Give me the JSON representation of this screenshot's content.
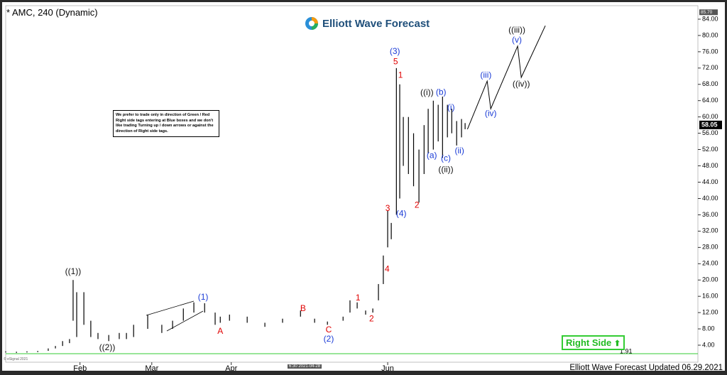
{
  "title": "* AMC, 240 (Dynamic)",
  "logo": "Elliott Wave Forecast",
  "note": "We prefer to trade only in direction of Green / Red Right side tags entering at Blue boxes and we don't like trading Turning up / down arrows or against the direction of Right side tags.",
  "right_side": "Right Side",
  "footer": "Elliott Wave Forecast Updated 06.29.2021",
  "copyright": "© eSignal 2021",
  "cursor_time": "6:30 2021-04-28",
  "chart_data": {
    "type": "ohlc",
    "color": "#000000",
    "x": [
      3.0,
      7.2,
      11.3,
      15.5,
      19.6,
      22.4,
      25.2,
      27.9,
      29.3,
      30.7,
      33.5,
      36.2,
      39.0,
      43.2,
      47.3,
      50.1,
      52.9,
      58.4,
      63.9,
      68.1,
      72.3,
      76.4,
      80.6,
      84.7,
      86.7,
      90.3,
      97.2,
      104.1,
      111.0,
      118.0,
      123.5,
      128.5,
      134.6,
      137.3,
      140.1,
      143.4,
      146.2,
      148.4,
      150.3,
      152.0,
      153.4,
      155.4,
      156.7,
      158.1,
      160.1,
      162.1,
      164.2,
      166.2,
      167.8,
      169.8,
      171.7,
      173.4,
      175.3,
      177.0,
      178.9,
      180.8,
      182.2
    ],
    "low": [
      2.2,
      2.1,
      2.2,
      2.3,
      2.6,
      3.2,
      3.8,
      4.5,
      10,
      6,
      9,
      6,
      5.5,
      5,
      5.5,
      5.5,
      6,
      8,
      7,
      8,
      10,
      12,
      12,
      9,
      9.5,
      10,
      9.5,
      8.5,
      9.5,
      11,
      9.5,
      9,
      10,
      12,
      13,
      11.5,
      12,
      15,
      19,
      28,
      30,
      36,
      40,
      48,
      46,
      43,
      39,
      46,
      51,
      52,
      54,
      50,
      55,
      56,
      53,
      55,
      57
    ],
    "high": [
      2.5,
      2.4,
      2.5,
      2.6,
      3.2,
      3.8,
      5,
      5.5,
      20,
      17,
      17,
      10,
      7,
      6.5,
      7,
      7,
      9,
      11.5,
      9,
      10,
      13,
      14.5,
      14.3,
      12,
      11,
      11.5,
      11,
      9.5,
      10.5,
      12.5,
      10.5,
      9.8,
      11,
      15,
      14.5,
      12.5,
      13,
      19,
      26,
      37,
      34,
      72,
      68,
      60,
      60,
      56,
      52,
      58,
      62,
      64,
      63,
      65,
      63,
      62,
      59,
      59.5,
      58.5
    ],
    "projection": {
      "color": "#000000",
      "x": [
        183.1,
        190.8,
        192.2,
        202.7,
        204.1,
        213.5
      ],
      "values": [
        57,
        68.8,
        62,
        77.4,
        69.7,
        82.4
      ]
    },
    "xlim": [
      3,
      273
    ],
    "ylim": [
      1.56,
      86.44
    ],
    "xticks": [
      {
        "value": 32,
        "label": "Feb"
      },
      {
        "value": 60,
        "label": "Mar"
      },
      {
        "value": 91,
        "label": "Apr"
      },
      {
        "value": 152,
        "label": "Jun"
      }
    ],
    "yticks": [
      {
        "value": 4,
        "label": "4.00"
      },
      {
        "value": 8,
        "label": "8.00"
      },
      {
        "value": 12,
        "label": "12.00"
      },
      {
        "value": 16,
        "label": "16.00"
      },
      {
        "value": 20,
        "label": "20.00"
      },
      {
        "value": 24,
        "label": "24.00"
      },
      {
        "value": 28,
        "label": "28.00"
      },
      {
        "value": 32,
        "label": "32.00"
      },
      {
        "value": 36,
        "label": "36.00"
      },
      {
        "value": 40,
        "label": "40.00"
      },
      {
        "value": 44,
        "label": "44.00"
      },
      {
        "value": 48,
        "label": "48.00"
      },
      {
        "value": 52,
        "label": "52.00"
      },
      {
        "value": 56,
        "label": "56.00"
      },
      {
        "value": 60,
        "label": "60.00"
      },
      {
        "value": 64,
        "label": "64.00"
      },
      {
        "value": 68,
        "label": "68.00"
      },
      {
        "value": 72,
        "label": "72.00"
      },
      {
        "value": 76,
        "label": "76.00"
      },
      {
        "value": 80,
        "label": "80.00"
      },
      {
        "value": 84,
        "label": "84.00"
      }
    ],
    "last_price": {
      "value": 58.05,
      "label": "58.05"
    },
    "cursor_price": {
      "value": 85.7,
      "label": "85.70"
    },
    "reference": {
      "value": 1.91,
      "label": "1.91",
      "color": "#33cc33"
    },
    "annotations": [
      {
        "text": "((1))",
        "x": 29.3,
        "y": 22,
        "color": "#111111"
      },
      {
        "text": "((2))",
        "x": 42.6,
        "y": 3.3,
        "color": "#111111"
      },
      {
        "text": "(1)",
        "x": 80,
        "y": 15.7,
        "color": "#1a3bd6"
      },
      {
        "text": "A",
        "x": 86.7,
        "y": 7.3,
        "color": "#e00000"
      },
      {
        "text": "B",
        "x": 119,
        "y": 12.9,
        "color": "#e00000"
      },
      {
        "text": "C",
        "x": 129,
        "y": 7.7,
        "color": "#e00000"
      },
      {
        "text": "(2)",
        "x": 129,
        "y": 5.4,
        "color": "#1a3bd6"
      },
      {
        "text": "1",
        "x": 140.4,
        "y": 15.5,
        "color": "#e00000"
      },
      {
        "text": "2",
        "x": 145.7,
        "y": 10.4,
        "color": "#e00000"
      },
      {
        "text": "3",
        "x": 152,
        "y": 37.5,
        "color": "#e00000"
      },
      {
        "text": "4",
        "x": 151.8,
        "y": 22.6,
        "color": "#e00000"
      },
      {
        "text": "(3)",
        "x": 154.8,
        "y": 76,
        "color": "#1a3bd6"
      },
      {
        "text": "5",
        "x": 155.1,
        "y": 73.5,
        "color": "#e00000"
      },
      {
        "text": "1",
        "x": 157,
        "y": 70.2,
        "color": "#e00000"
      },
      {
        "text": "(4)",
        "x": 157.3,
        "y": 36.2,
        "color": "#1a3bd6"
      },
      {
        "text": "2",
        "x": 163.4,
        "y": 38.3,
        "color": "#e00000"
      },
      {
        "text": "((i))",
        "x": 167.3,
        "y": 65.9,
        "color": "#111111"
      },
      {
        "text": "(b)",
        "x": 172.8,
        "y": 66,
        "color": "#1a3bd6"
      },
      {
        "text": "(i)",
        "x": 176.7,
        "y": 62.2,
        "color": "#1a3bd6"
      },
      {
        "text": "(a)",
        "x": 169.2,
        "y": 50.5,
        "color": "#1a3bd6"
      },
      {
        "text": "(c)",
        "x": 174.7,
        "y": 49.8,
        "color": "#1a3bd6"
      },
      {
        "text": "((ii))",
        "x": 174.7,
        "y": 47,
        "color": "#111111"
      },
      {
        "text": "(ii)",
        "x": 180,
        "y": 51.6,
        "color": "#1a3bd6"
      },
      {
        "text": "(iii)",
        "x": 190.3,
        "y": 70.2,
        "color": "#1a3bd6"
      },
      {
        "text": "(iv)",
        "x": 192.2,
        "y": 60.8,
        "color": "#1a3bd6"
      },
      {
        "text": "((iii))",
        "x": 202.4,
        "y": 81.2,
        "color": "#111111"
      },
      {
        "text": "(v)",
        "x": 202.4,
        "y": 78.8,
        "color": "#1a3bd6"
      },
      {
        "text": "((iv))",
        "x": 204.1,
        "y": 68,
        "color": "#111111"
      }
    ]
  }
}
